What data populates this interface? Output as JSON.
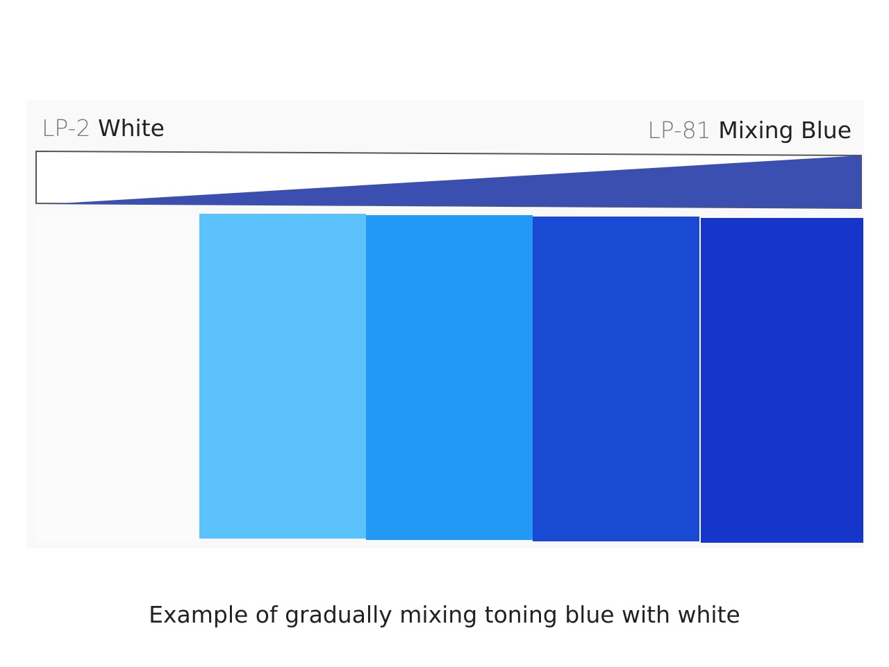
{
  "labels": {
    "left": {
      "code": "LP-2",
      "name": "White"
    },
    "right": {
      "code": "LP-81",
      "name": "Mixing Blue"
    }
  },
  "caption": "Example of gradually mixing toning blue with white"
}
